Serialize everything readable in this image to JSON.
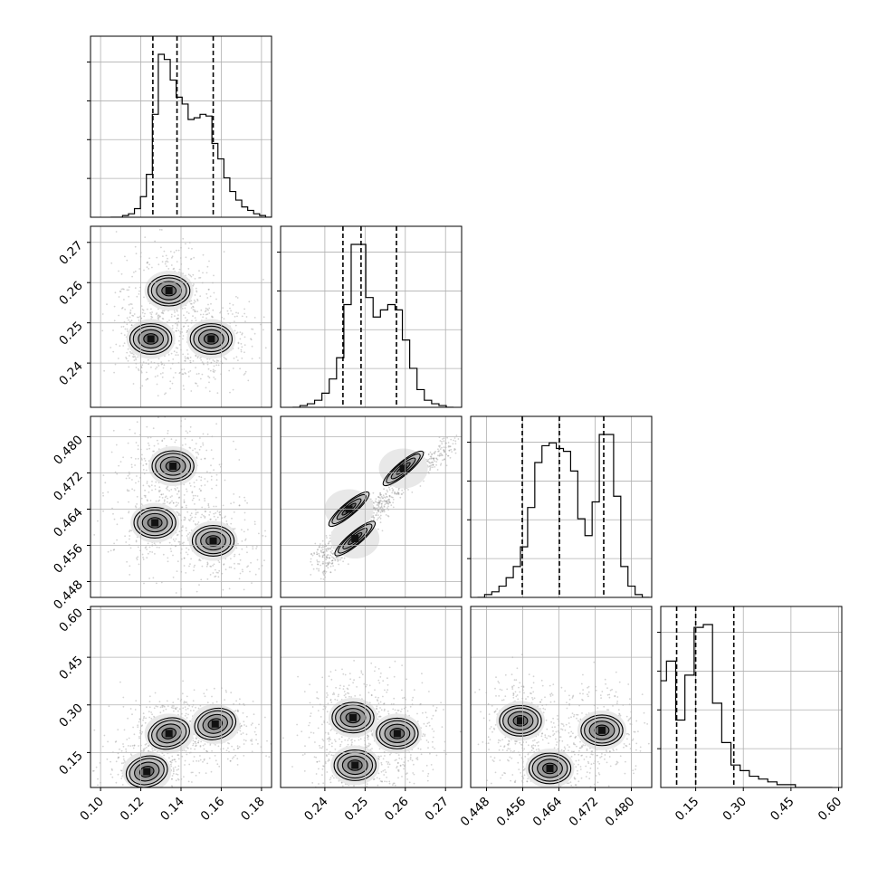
{
  "chart_data": {
    "type": "corner",
    "title": "",
    "grid": true,
    "variables": [
      {
        "range": [
          0.095,
          0.185
        ],
        "ticks": [
          0.1,
          0.12,
          0.14,
          0.16,
          0.18
        ],
        "tick_labels": [
          "0.10",
          "0.12",
          "0.14",
          "0.16",
          "0.18"
        ],
        "quantiles": [
          0.126,
          0.138,
          0.156
        ]
      },
      {
        "range": [
          0.229,
          0.274
        ],
        "ticks": [
          0.24,
          0.25,
          0.26,
          0.27
        ],
        "tick_labels": [
          "0.24",
          "0.25",
          "0.26",
          "0.27"
        ],
        "quantiles": [
          0.2445,
          0.249,
          0.2578
        ]
      },
      {
        "range": [
          0.4445,
          0.4845
        ],
        "ticks": [
          0.448,
          0.456,
          0.464,
          0.472,
          0.48
        ],
        "tick_labels": [
          "0.448",
          "0.456",
          "0.464",
          "0.472",
          "0.480"
        ],
        "quantiles": [
          0.4559,
          0.4641,
          0.4739
        ]
      },
      {
        "range": [
          0.04,
          0.61
        ],
        "ticks": [
          0.15,
          0.3,
          0.45,
          0.6
        ],
        "tick_labels": [
          "0.15",
          "0.30",
          "0.45",
          "0.60"
        ],
        "quantiles": [
          0.09,
          0.15,
          0.27
        ]
      }
    ],
    "hist1d": [
      {
        "edges_range": [
          0.105,
          0.185
        ],
        "counts": [
          0,
          0,
          1,
          2,
          5,
          12,
          25,
          60,
          95,
          92,
          80,
          70,
          66,
          57,
          58,
          60,
          59,
          43,
          34,
          23,
          15,
          10,
          6,
          4,
          2,
          1,
          0
        ]
      },
      {
        "edges_range": [
          0.232,
          0.272
        ],
        "counts": [
          0,
          1,
          2,
          4,
          8,
          16,
          28,
          58,
          92,
          92,
          62,
          51,
          55,
          58,
          55,
          38,
          22,
          10,
          4,
          2,
          1,
          0
        ]
      },
      {
        "edges_range": [
          0.446,
          0.484
        ],
        "counts": [
          0,
          1,
          2,
          4,
          7,
          11,
          18,
          32,
          48,
          54,
          55,
          53,
          52,
          45,
          28,
          22,
          34,
          58,
          58,
          36,
          11,
          4,
          1,
          0
        ]
      },
      {
        "edges_range": [
          0.0,
          0.58
        ],
        "counts": [
          2,
          38,
          45,
          24,
          40,
          57,
          58,
          30,
          16,
          8,
          6,
          4,
          3,
          2,
          1,
          1,
          0,
          0,
          0,
          0
        ]
      }
    ],
    "pairs": [
      {
        "x": 0,
        "y": 1,
        "modes": [
          [
            0.134,
            0.258
          ],
          [
            0.125,
            0.246
          ],
          [
            0.155,
            0.246
          ]
        ]
      },
      {
        "x": 0,
        "y": 2,
        "modes": [
          [
            0.136,
            0.4735
          ],
          [
            0.127,
            0.461
          ],
          [
            0.156,
            0.457
          ]
        ]
      },
      {
        "x": 1,
        "y": 2,
        "modes": [
          [
            0.2595,
            0.473
          ],
          [
            0.246,
            0.464
          ],
          [
            0.2475,
            0.4575
          ]
        ]
      },
      {
        "x": 0,
        "y": 3,
        "modes": [
          [
            0.123,
            0.09
          ],
          [
            0.134,
            0.21
          ],
          [
            0.157,
            0.24
          ]
        ]
      },
      {
        "x": 1,
        "y": 3,
        "modes": [
          [
            0.247,
            0.26
          ],
          [
            0.2475,
            0.11
          ],
          [
            0.258,
            0.21
          ]
        ]
      },
      {
        "x": 2,
        "y": 3,
        "modes": [
          [
            0.4555,
            0.25
          ],
          [
            0.462,
            0.1
          ],
          [
            0.4735,
            0.22
          ]
        ]
      }
    ]
  }
}
